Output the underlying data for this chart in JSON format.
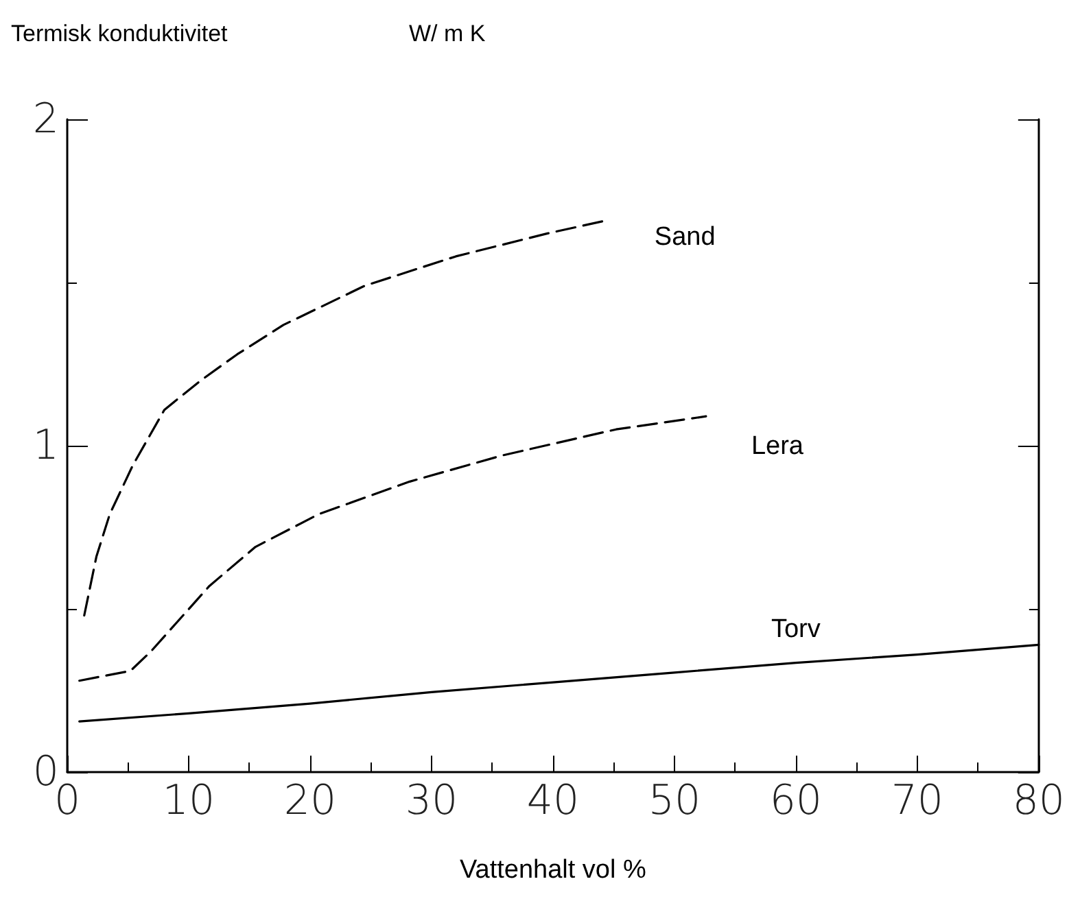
{
  "chart_data": {
    "type": "line",
    "ylabel": "Termisk konduktivitet",
    "xlabel": "Vattenhalt vol %",
    "annotations": [
      "W/ m K"
    ],
    "xlim": [
      0,
      80
    ],
    "xticks": [
      0,
      {
        "value": 5,
        "label": null
      },
      10,
      {
        "value": 15,
        "label": null
      },
      20,
      {
        "value": 25,
        "label": null
      },
      30,
      {
        "value": 35,
        "label": null
      },
      40,
      {
        "value": 45,
        "label": null
      },
      50,
      {
        "value": 55,
        "label": null
      },
      60,
      {
        "value": 65,
        "label": null
      },
      70,
      {
        "value": 75,
        "label": null
      },
      80
    ],
    "ylim": [
      0,
      2
    ],
    "yticks": [
      0,
      {
        "value": 0.5,
        "label": null
      },
      1,
      {
        "value": 1.5,
        "label": null
      },
      2
    ],
    "grid": false,
    "legend": false,
    "marker": "none",
    "series": [
      {
        "name": "Sand",
        "color": "#000000",
        "line_style": "dashed",
        "x": [
          1.4,
          2.4,
          3.5,
          5.4,
          8,
          11,
          14,
          17.8,
          24.5,
          32,
          39.5,
          44.4
        ],
        "values": [
          0.48,
          0.66,
          0.79,
          0.94,
          1.11,
          1.2,
          1.28,
          1.37,
          1.49,
          1.58,
          1.65,
          1.69
        ]
      },
      {
        "name": "Lera",
        "color": "#000000",
        "line_style": "dashed",
        "x": [
          1,
          5.2,
          6.9,
          11.7,
          15.5,
          20.7,
          28.2,
          35.8,
          45.2,
          52.6
        ],
        "values": [
          0.28,
          0.31,
          0.37,
          0.57,
          0.69,
          0.79,
          0.89,
          0.97,
          1.05,
          1.09
        ]
      },
      {
        "name": "Torv",
        "color": "#000000",
        "line_style": "solid",
        "x": [
          1,
          10,
          20,
          30,
          40,
          50,
          60,
          70,
          80
        ],
        "values": [
          0.155,
          0.18,
          0.21,
          0.245,
          0.275,
          0.305,
          0.335,
          0.36,
          0.39
        ]
      }
    ]
  }
}
